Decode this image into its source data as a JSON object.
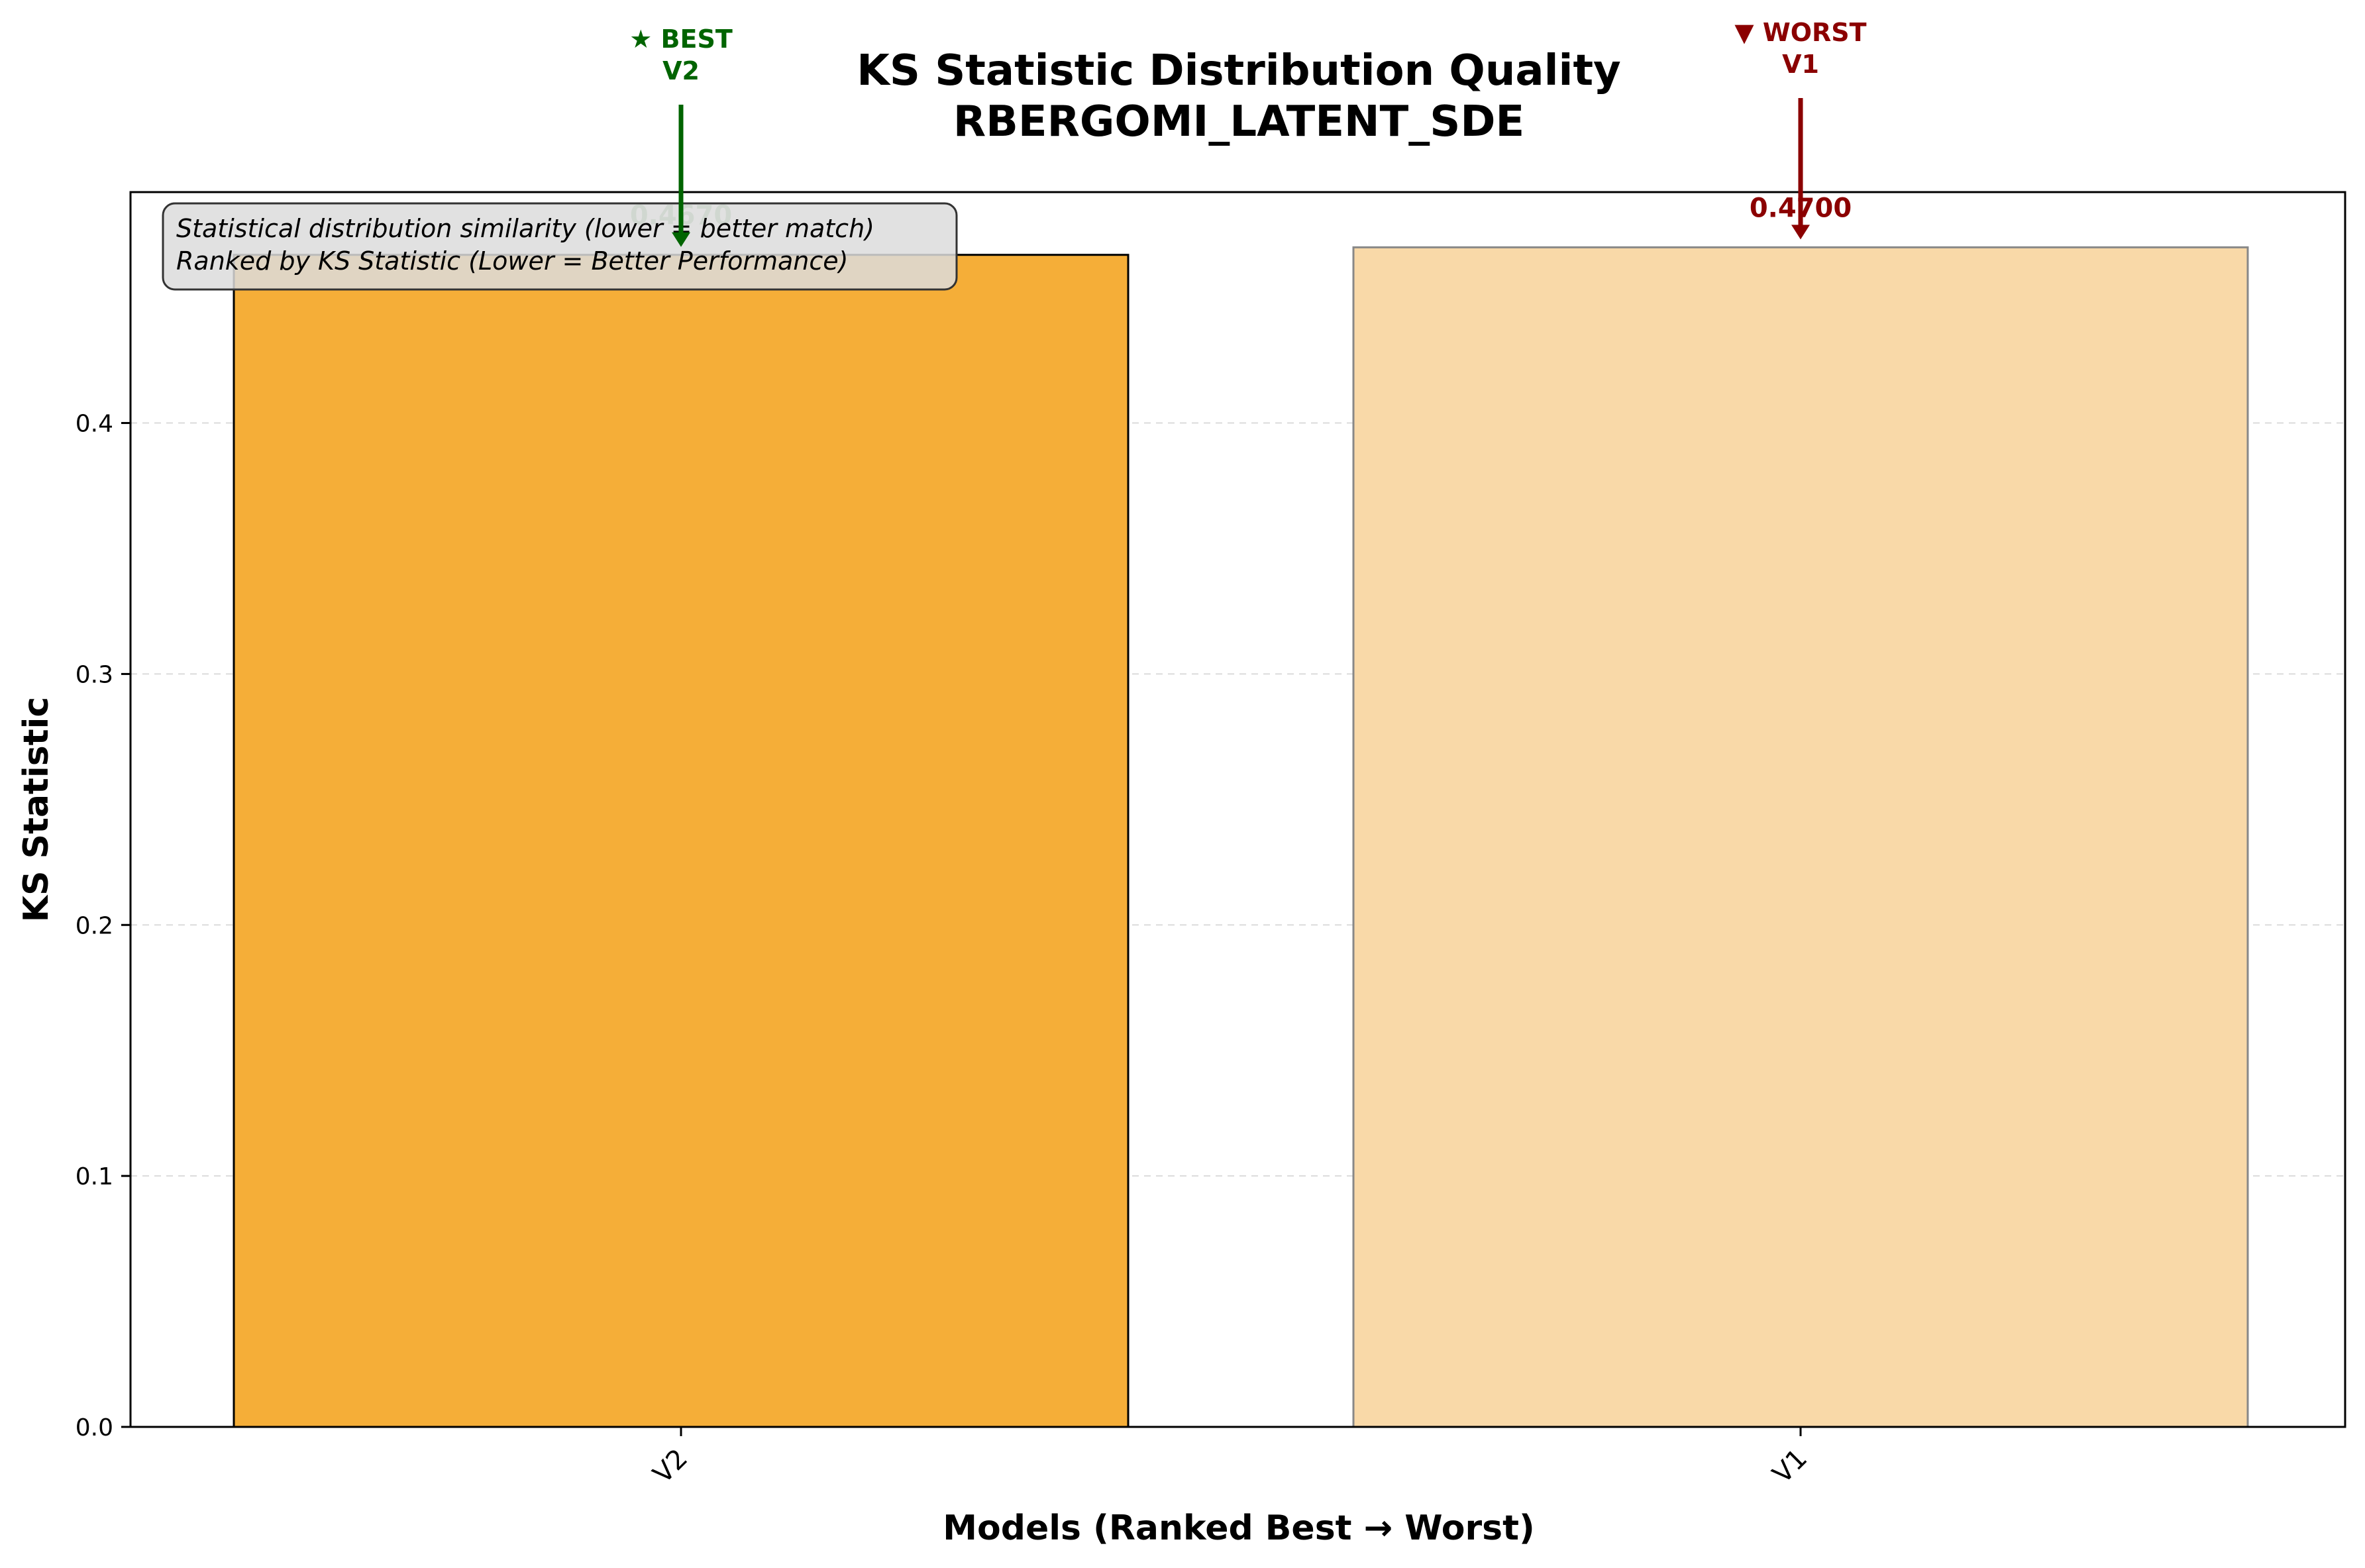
{
  "chart_data": {
    "type": "bar",
    "title": "KS Statistic Distribution Quality",
    "subtitle": "RBERGOMI_LATENT_SDE",
    "xlabel": "Models (Ranked Best → Worst)",
    "ylabel": "KS Statistic",
    "categories": [
      "V2",
      "V1"
    ],
    "values": [
      0.467,
      0.47
    ],
    "value_labels": [
      "0.4670",
      "0.4700"
    ],
    "ylim": [
      0,
      0.492
    ],
    "yticks": [
      0.0,
      0.1,
      0.2,
      0.3,
      0.4
    ],
    "ytick_labels": [
      "0.0",
      "0.1",
      "0.2",
      "0.3",
      "0.4"
    ],
    "grid": "y dashed",
    "bar_colors": [
      "#f5ae38",
      "#f9d9a8"
    ],
    "bar_edge_colors": [
      "#000000",
      "#888888"
    ],
    "annotations": {
      "best": {
        "symbol": "★ BEST",
        "model": "V2",
        "color": "#006400"
      },
      "worst": {
        "symbol": "▼ WORST",
        "model": "V1",
        "color": "#8b0000"
      }
    },
    "note": {
      "line1": "Statistical distribution similarity (lower = better match)",
      "line2": "Ranked by KS Statistic (Lower = Better Performance)"
    }
  }
}
